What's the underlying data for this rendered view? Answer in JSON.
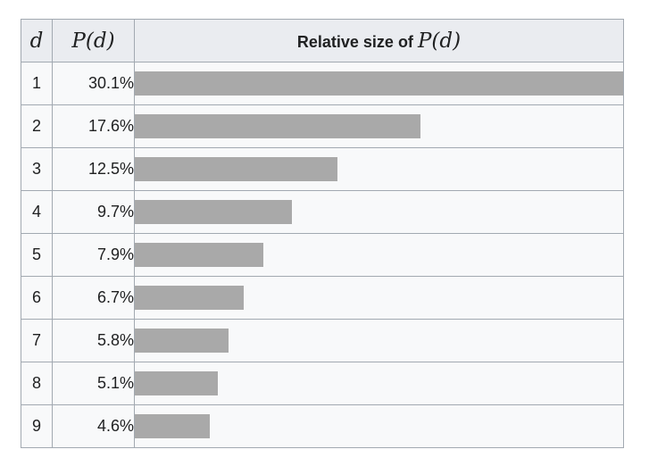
{
  "colors": {
    "page_bg": "#ffffff",
    "header_bg": "#eaecf0",
    "row_bg": "#f8f9fa",
    "border": "#a2a9b1",
    "bar": "#a9a9a9",
    "text": "#202122"
  },
  "table": {
    "header": {
      "d": "d",
      "pd": "P(d)",
      "bar_label_bold": "Relative size of",
      "bar_label_math": "P(d)"
    },
    "rows": [
      {
        "d": "1",
        "p": "30.1%"
      },
      {
        "d": "2",
        "p": "17.6%"
      },
      {
        "d": "3",
        "p": "12.5%"
      },
      {
        "d": "4",
        "p": "9.7%"
      },
      {
        "d": "5",
        "p": "7.9%"
      },
      {
        "d": "6",
        "p": "6.7%"
      },
      {
        "d": "7",
        "p": "5.8%"
      },
      {
        "d": "8",
        "p": "5.1%"
      },
      {
        "d": "9",
        "p": "4.6%"
      }
    ]
  },
  "chart_data": {
    "type": "bar",
    "orientation": "horizontal",
    "title": "Relative size of P(d)",
    "xlabel": "d",
    "ylabel": "P(d)",
    "categories": [
      "1",
      "2",
      "3",
      "4",
      "5",
      "6",
      "7",
      "8",
      "9"
    ],
    "values": [
      30.1,
      17.6,
      12.5,
      9.7,
      7.9,
      6.7,
      5.8,
      5.1,
      4.6
    ],
    "value_unit": "%",
    "value_labels": [
      "30.1%",
      "17.6%",
      "12.5%",
      "9.7%",
      "7.9%",
      "6.7%",
      "5.8%",
      "5.1%",
      "4.6%"
    ],
    "max_value": 30.1,
    "axis_range": [
      0,
      30.1
    ],
    "grid": false,
    "legend": false,
    "bar_color": "#a9a9a9"
  }
}
